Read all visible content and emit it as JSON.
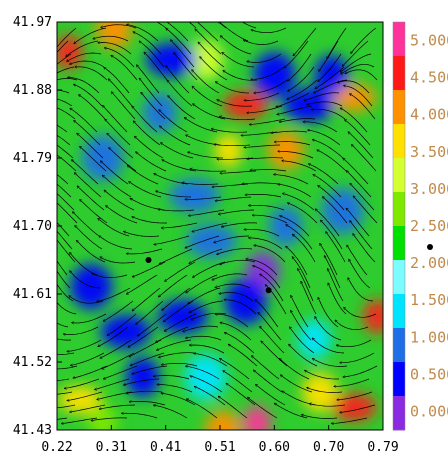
{
  "chart_data": {
    "type": "heatmap",
    "overlay": "streamlines",
    "title": "",
    "xlabel": "",
    "ylabel": "",
    "x_ticks": [
      "0.22",
      "0.31",
      "0.41",
      "0.51",
      "0.60",
      "0.70",
      "0.79"
    ],
    "y_ticks": [
      "41.97",
      "41.88",
      "41.79",
      "41.70",
      "41.61",
      "41.52",
      "41.43"
    ],
    "xlim": [
      0.22,
      0.79
    ],
    "ylim": [
      41.43,
      41.97
    ],
    "colorbar": {
      "labels": [
        "0.000",
        "0.500",
        "1.000",
        "1.500",
        "2.000",
        "2.500",
        "3.000",
        "3.500",
        "4.000",
        "4.500",
        "5.000"
      ],
      "range": [
        -0.25,
        5.25
      ],
      "colors": [
        "#8a2be2",
        "#0000ff",
        "#1e6fe6",
        "#00e5ff",
        "#7cfcff",
        "#00e000",
        "#7ee800",
        "#d4ff30",
        "#ffe000",
        "#ff9000",
        "#ff1a1a",
        "#ff3399"
      ]
    },
    "point_markers": [
      {
        "x": 0.38,
        "y": 41.655
      },
      {
        "x": 0.59,
        "y": 41.615
      }
    ],
    "field_hotspots": [
      {
        "x": 0.24,
        "y": 41.93,
        "value": 4.5
      },
      {
        "x": 0.32,
        "y": 41.96,
        "value": 4.0
      },
      {
        "x": 0.55,
        "y": 41.86,
        "value": 4.5
      },
      {
        "x": 0.52,
        "y": 41.8,
        "value": 3.5
      },
      {
        "x": 0.62,
        "y": 41.8,
        "value": 4.0
      },
      {
        "x": 0.74,
        "y": 41.87,
        "value": 4.0
      },
      {
        "x": 0.78,
        "y": 41.58,
        "value": 4.5
      },
      {
        "x": 0.68,
        "y": 41.48,
        "value": 3.8
      },
      {
        "x": 0.74,
        "y": 41.46,
        "value": 4.5
      },
      {
        "x": 0.57,
        "y": 41.44,
        "value": 4.8
      },
      {
        "x": 0.51,
        "y": 41.43,
        "value": 4.2
      },
      {
        "x": 0.26,
        "y": 41.47,
        "value": 3.5
      },
      {
        "x": 0.3,
        "y": 41.44,
        "value": 2.8
      },
      {
        "x": 0.48,
        "y": 41.92,
        "value": 3.0
      },
      {
        "x": 0.44,
        "y": 41.58,
        "value": 0.4
      },
      {
        "x": 0.58,
        "y": 41.64,
        "value": 0.1
      },
      {
        "x": 0.55,
        "y": 41.6,
        "value": 0.5
      },
      {
        "x": 0.34,
        "y": 41.56,
        "value": 0.5
      },
      {
        "x": 0.37,
        "y": 41.5,
        "value": 0.5
      },
      {
        "x": 0.28,
        "y": 41.62,
        "value": 0.6
      },
      {
        "x": 0.42,
        "y": 41.92,
        "value": 0.6
      },
      {
        "x": 0.4,
        "y": 41.85,
        "value": 0.7
      },
      {
        "x": 0.6,
        "y": 41.9,
        "value": 0.6
      },
      {
        "x": 0.66,
        "y": 41.86,
        "value": 0.5
      },
      {
        "x": 0.7,
        "y": 41.9,
        "value": 0.6
      },
      {
        "x": 0.72,
        "y": 41.72,
        "value": 0.8
      },
      {
        "x": 0.46,
        "y": 41.74,
        "value": 0.9
      },
      {
        "x": 0.62,
        "y": 41.7,
        "value": 0.8
      },
      {
        "x": 0.3,
        "y": 41.79,
        "value": 1.0
      },
      {
        "x": 0.49,
        "y": 41.68,
        "value": 1.0
      },
      {
        "x": 0.67,
        "y": 41.55,
        "value": 1.3
      },
      {
        "x": 0.48,
        "y": 41.5,
        "value": 1.4
      }
    ]
  }
}
